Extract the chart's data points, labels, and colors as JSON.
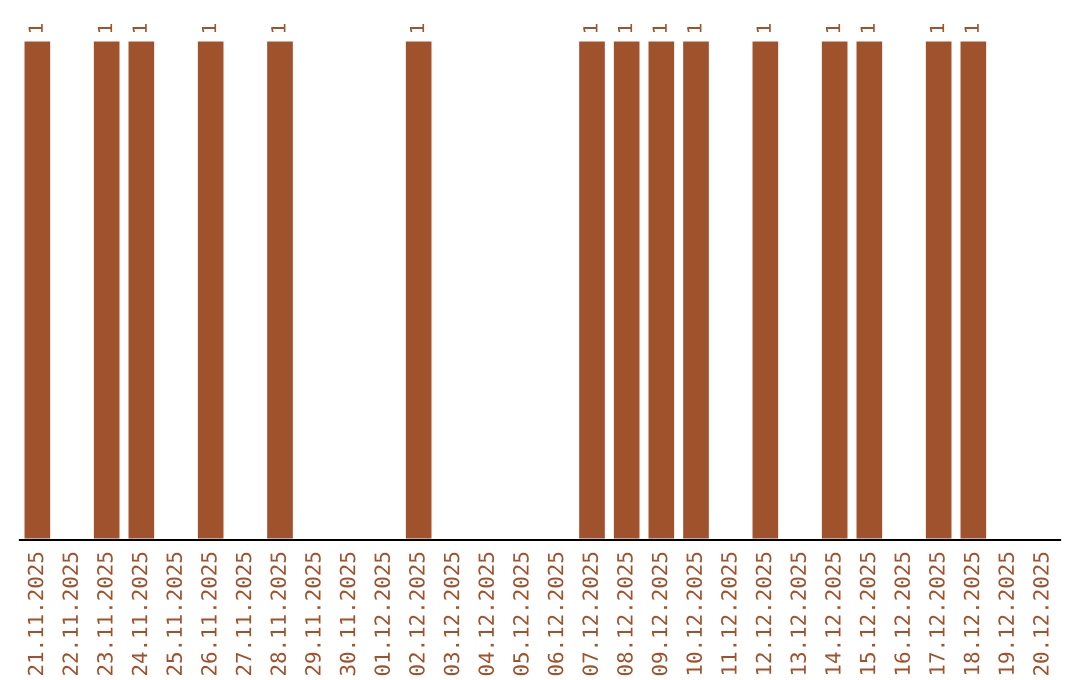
{
  "chart_data": {
    "type": "bar",
    "categories": [
      "21.11.2025",
      "22.11.2025",
      "23.11.2025",
      "24.11.2025",
      "25.11.2025",
      "26.11.2025",
      "27.11.2025",
      "28.11.2025",
      "29.11.2025",
      "30.11.2025",
      "01.12.2025",
      "02.12.2025",
      "03.12.2025",
      "04.12.2025",
      "05.12.2025",
      "06.12.2025",
      "07.12.2025",
      "08.12.2025",
      "09.12.2025",
      "10.12.2025",
      "11.12.2025",
      "12.12.2025",
      "13.12.2025",
      "14.12.2025",
      "15.12.2025",
      "16.12.2025",
      "17.12.2025",
      "18.12.2025",
      "19.12.2025",
      "20.12.2025"
    ],
    "values": [
      1,
      null,
      1,
      1,
      null,
      1,
      null,
      1,
      null,
      null,
      null,
      1,
      null,
      null,
      null,
      null,
      1,
      1,
      1,
      1,
      null,
      1,
      null,
      1,
      1,
      null,
      1,
      1,
      null,
      null
    ],
    "value_labels": [
      "1",
      null,
      "1",
      "1",
      null,
      "1",
      null,
      "1",
      null,
      null,
      null,
      "1",
      null,
      null,
      null,
      null,
      "1",
      "1",
      "1",
      "1",
      null,
      "1",
      null,
      "1",
      "1",
      null,
      "1",
      "1",
      null,
      null
    ],
    "color": "#a0522d",
    "grid": false,
    "legend": false,
    "tick_labels": "x"
  }
}
